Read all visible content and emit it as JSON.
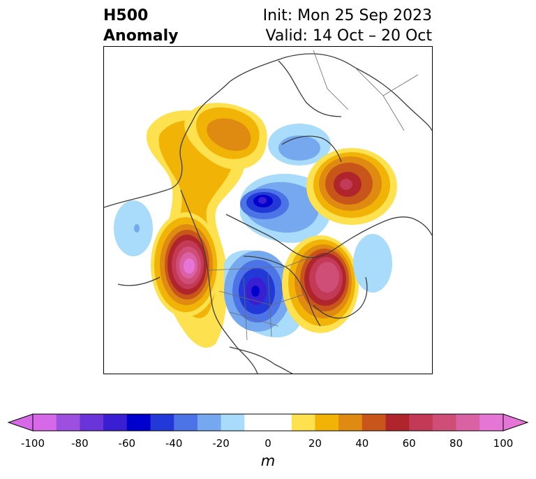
{
  "title": {
    "left_line1": "H500",
    "left_line2": "Anomaly",
    "right_line1": "Init: Mon 25 Sep 2023",
    "right_line2": "Valid: 14 Oct – 20 Oct"
  },
  "colorbar": {
    "unit": "m",
    "ticks": [
      "-100",
      "-80",
      "-60",
      "-40",
      "-20",
      "0",
      "20",
      "40",
      "60",
      "80",
      "100"
    ],
    "colors": [
      "#d569e7",
      "#9d4fe0",
      "#6a35d8",
      "#3a1fd2",
      "#0000cc",
      "#2239d8",
      "#4d74e6",
      "#76a8f0",
      "#a9dbfa",
      "#ffffff",
      "#ffffff",
      "#fde14e",
      "#f1b406",
      "#df8a10",
      "#c8561a",
      "#b0252b",
      "#c23a55",
      "#cf4e78",
      "#da62a4",
      "#e676d6"
    ]
  },
  "map": {
    "region": "Northern Hemisphere polar stereographic",
    "anomaly_centers": [
      {
        "name": "western North America ridge",
        "sign": "positive",
        "peak": 100
      },
      {
        "name": "central North America trough",
        "sign": "negative",
        "peak": -60
      },
      {
        "name": "northwest Atlantic ridge",
        "sign": "positive",
        "peak": 80
      },
      {
        "name": "Arctic trough",
        "sign": "negative",
        "peak": -60
      },
      {
        "name": "Siberia ridge",
        "sign": "positive",
        "peak": 60
      },
      {
        "name": "Arctic Siberia ridge",
        "sign": "positive",
        "peak": 40
      },
      {
        "name": "Scandinavia trough",
        "sign": "negative",
        "peak": -20
      },
      {
        "name": "north Pacific trough",
        "sign": "negative",
        "peak": -30
      },
      {
        "name": "north Atlantic trough",
        "sign": "negative",
        "peak": -20
      }
    ]
  }
}
